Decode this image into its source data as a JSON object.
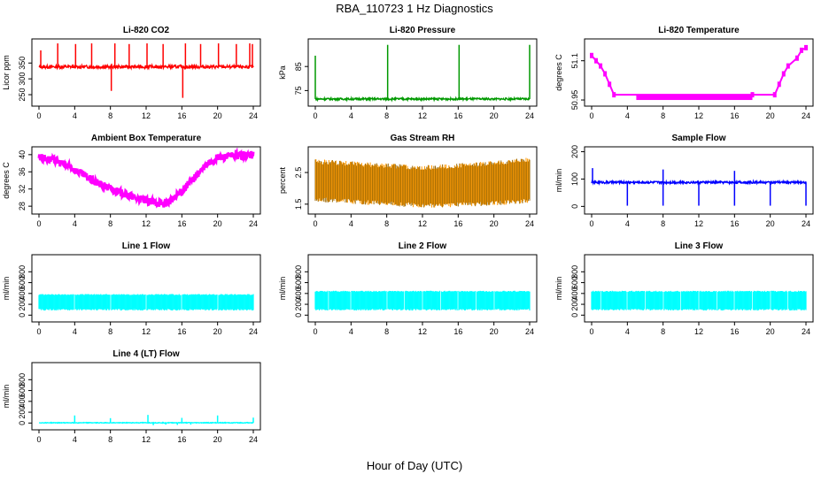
{
  "page": {
    "title": "RBA_110723  1 Hz Diagnostics",
    "xlabel": "Hour of Day (UTC)"
  },
  "chart_data": [
    {
      "type": "line",
      "title": "Li-820 CO2",
      "ylabel": "Licor ppm",
      "xlim": [
        0,
        24
      ],
      "ylim": [
        225,
        415
      ],
      "xticks": [
        0,
        4,
        8,
        12,
        16,
        20,
        24
      ],
      "yticks": [
        250,
        300,
        350
      ],
      "color": "#ff0000",
      "baseline": 338,
      "noise": 5,
      "spikes": [
        {
          "x": 0.2,
          "y": 390
        },
        {
          "x": 2.1,
          "y": 412
        },
        {
          "x": 4.1,
          "y": 410
        },
        {
          "x": 5.9,
          "y": 412
        },
        {
          "x": 8.1,
          "y": 262
        },
        {
          "x": 8.5,
          "y": 412
        },
        {
          "x": 10.1,
          "y": 410
        },
        {
          "x": 12.1,
          "y": 412
        },
        {
          "x": 13.9,
          "y": 410
        },
        {
          "x": 16.1,
          "y": 240
        },
        {
          "x": 16.4,
          "y": 412
        },
        {
          "x": 18.1,
          "y": 410
        },
        {
          "x": 20.1,
          "y": 412
        },
        {
          "x": 22.1,
          "y": 410
        },
        {
          "x": 23.6,
          "y": 412
        },
        {
          "x": 23.9,
          "y": 410
        }
      ]
    },
    {
      "type": "line",
      "title": "Li-820 Pressure",
      "ylabel": "kPa",
      "xlim": [
        0,
        24
      ],
      "ylim": [
        70,
        95
      ],
      "xticks": [
        0,
        4,
        8,
        12,
        16,
        20,
        24
      ],
      "yticks": [
        75,
        85
      ],
      "color": "#009900",
      "baseline": 71.5,
      "noise": 0.4,
      "spikes": [
        {
          "x": 0.0,
          "y": 89.5
        },
        {
          "x": 8.1,
          "y": 94
        },
        {
          "x": 16.1,
          "y": 94
        },
        {
          "x": 24.0,
          "y": 94
        }
      ]
    },
    {
      "type": "line",
      "title": "Li-820 Temperature",
      "ylabel": "degrees C",
      "xlim": [
        0,
        24
      ],
      "ylim": [
        50.94,
        51.17
      ],
      "xticks": [
        0,
        4,
        8,
        12,
        16,
        20,
        24
      ],
      "yticks": [
        50.95,
        51.1
      ],
      "extra_ytick": "51.10",
      "color": "#ff00ff",
      "profile": [
        {
          "x": 0.0,
          "y": 51.12
        },
        {
          "x": 0.5,
          "y": 51.1
        },
        {
          "x": 1.0,
          "y": 51.08
        },
        {
          "x": 1.5,
          "y": 51.05
        },
        {
          "x": 2.0,
          "y": 51.01
        },
        {
          "x": 2.5,
          "y": 50.97
        },
        {
          "x": 18.0,
          "y": 50.97
        },
        {
          "x": 20.5,
          "y": 50.97
        },
        {
          "x": 21.0,
          "y": 51.01
        },
        {
          "x": 21.5,
          "y": 51.05
        },
        {
          "x": 22.0,
          "y": 51.08
        },
        {
          "x": 23.0,
          "y": 51.11
        },
        {
          "x": 23.5,
          "y": 51.14
        },
        {
          "x": 24.0,
          "y": 51.15
        }
      ],
      "band": {
        "x_start": 5.0,
        "x_end": 18.0,
        "y_low": 50.95,
        "y_high": 50.97
      }
    },
    {
      "type": "line",
      "title": "Ambient Box Temperature",
      "ylabel": "degrees C",
      "xlim": [
        0,
        24
      ],
      "ylim": [
        27,
        41
      ],
      "xticks": [
        0,
        4,
        8,
        12,
        16,
        20,
        24
      ],
      "yticks": [
        28,
        32,
        36,
        40
      ],
      "color": "#ff00ff",
      "profile": [
        {
          "x": 0.0,
          "y": 39.5
        },
        {
          "x": 2.0,
          "y": 38.5
        },
        {
          "x": 4.0,
          "y": 36.5
        },
        {
          "x": 6.0,
          "y": 34.0
        },
        {
          "x": 8.0,
          "y": 32.0
        },
        {
          "x": 10.0,
          "y": 30.5
        },
        {
          "x": 12.0,
          "y": 29.2
        },
        {
          "x": 14.0,
          "y": 28.6
        },
        {
          "x": 15.0,
          "y": 29.5
        },
        {
          "x": 16.0,
          "y": 31.5
        },
        {
          "x": 18.0,
          "y": 36.0
        },
        {
          "x": 19.0,
          "y": 38.0
        },
        {
          "x": 20.0,
          "y": 39.3
        },
        {
          "x": 22.0,
          "y": 39.8
        },
        {
          "x": 24.0,
          "y": 40.0
        }
      ],
      "band_width": 0.9
    },
    {
      "type": "line",
      "title": "Gas Stream RH",
      "ylabel": "percent",
      "xlim": [
        0,
        24
      ],
      "ylim": [
        1.3,
        3.2
      ],
      "xticks": [
        0,
        4,
        8,
        12,
        16,
        20,
        24
      ],
      "yticks": [
        1.5,
        2.5
      ],
      "color": "#ff9900",
      "inner_color": "#996600",
      "low": [
        1.65,
        1.55,
        1.45,
        1.5,
        1.6
      ],
      "high": [
        2.85,
        2.75,
        2.65,
        2.75,
        2.9
      ]
    },
    {
      "type": "line",
      "title": "Sample Flow",
      "ylabel": "ml/min",
      "xlim": [
        0,
        24
      ],
      "ylim": [
        -15,
        205
      ],
      "xticks": [
        0,
        4,
        8,
        12,
        16,
        20,
        24
      ],
      "yticks": [
        0,
        100,
        200
      ],
      "color": "#0000ff",
      "baseline": 88,
      "noise": 4,
      "dips": [
        4.0,
        8.0,
        12.0,
        16.0,
        20.0,
        24.0
      ],
      "spikes": [
        {
          "x": 0.1,
          "y": 140
        },
        {
          "x": 8.0,
          "y": 135
        },
        {
          "x": 16.0,
          "y": 130
        }
      ]
    },
    {
      "type": "line",
      "title": "Line 1 Flow",
      "ylabel": "ml/min",
      "xlim": [
        0,
        24
      ],
      "ylim": [
        -60,
        1050
      ],
      "xticks": [
        0,
        4,
        8,
        12,
        16,
        20,
        24
      ],
      "yticks": [
        0,
        200,
        400,
        600,
        800
      ],
      "color": "#00ffff",
      "low": 100,
      "high": 380,
      "gaps": [
        4.0,
        8.0,
        12.0,
        16.0,
        20.0
      ]
    },
    {
      "type": "line",
      "title": "Line 2 Flow",
      "ylabel": "ml/min",
      "xlim": [
        0,
        24
      ],
      "ylim": [
        -60,
        1050
      ],
      "xticks": [
        0,
        4,
        8,
        12,
        16,
        20,
        24
      ],
      "yticks": [
        0,
        200,
        400,
        600,
        800
      ],
      "color": "#00ffff",
      "low": 100,
      "high": 440,
      "gaps": [
        1.5,
        4.0,
        8.0,
        10.0,
        12.0,
        14.0,
        16.0,
        18.0,
        20.0
      ]
    },
    {
      "type": "line",
      "title": "Line 3 Flow",
      "ylabel": "ml/min",
      "xlim": [
        0,
        24
      ],
      "ylim": [
        -60,
        1050
      ],
      "xticks": [
        0,
        4,
        8,
        12,
        16,
        20,
        24
      ],
      "yticks": [
        0,
        200,
        400,
        600,
        800
      ],
      "color": "#00ffff",
      "low": 100,
      "high": 440,
      "gaps": [
        1.0,
        4.0,
        6.0,
        8.0,
        10.0,
        12.0,
        14.0,
        16.0,
        18.0,
        20.0,
        22.0
      ]
    },
    {
      "type": "line",
      "title": "Line 4 (LT) Flow",
      "ylabel": "ml/min",
      "xlim": [
        0,
        24
      ],
      "ylim": [
        -60,
        1050
      ],
      "xticks": [
        0,
        4,
        8,
        12,
        16,
        20,
        24
      ],
      "yticks": [
        0,
        200,
        400,
        600,
        800
      ],
      "color": "#00ffff",
      "baseline": 5,
      "noise": 6,
      "spikes": [
        {
          "x": 4.0,
          "y": 140
        },
        {
          "x": 8.0,
          "y": 90
        },
        {
          "x": 12.2,
          "y": 150
        },
        {
          "x": 16.0,
          "y": 95
        },
        {
          "x": 20.0,
          "y": 140
        },
        {
          "x": 24.0,
          "y": 100
        }
      ],
      "dips": [
        {
          "x": 12.8,
          "y": -40
        },
        {
          "x": 14.2,
          "y": -30
        },
        {
          "x": 15.5,
          "y": -35
        },
        {
          "x": 17.0,
          "y": -30
        }
      ]
    }
  ]
}
